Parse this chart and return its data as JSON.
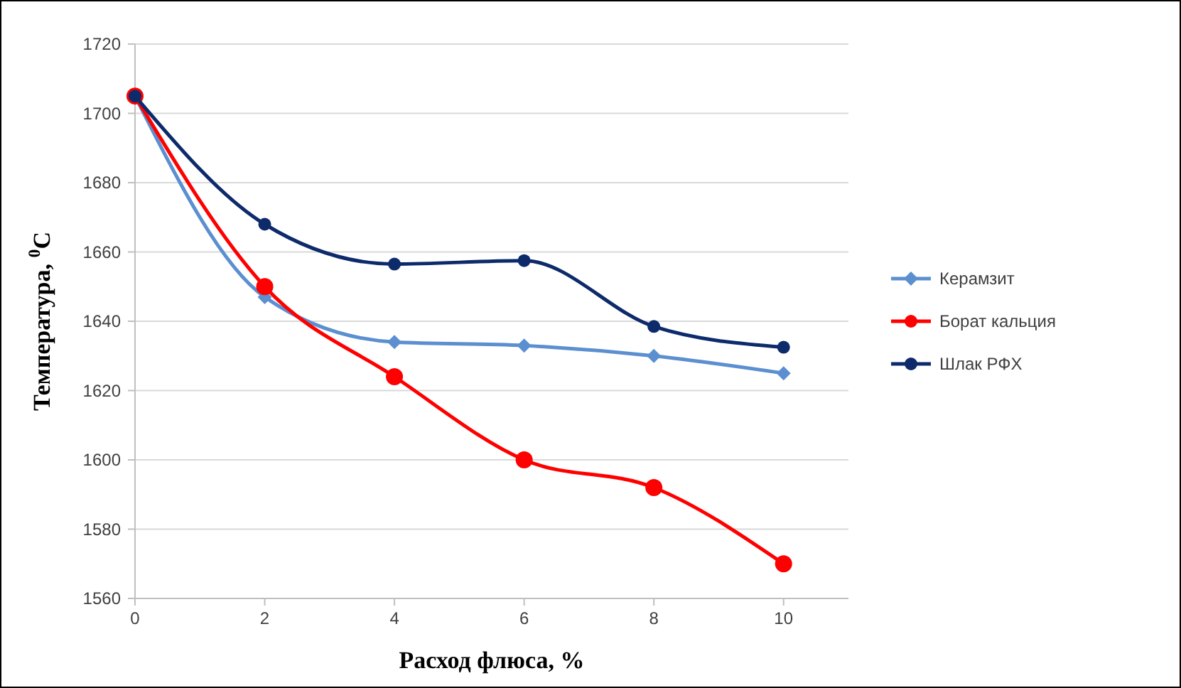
{
  "chart_data": {
    "type": "line",
    "xlabel": "Расход флюса, %",
    "ylabel": "Температура, $^{0}$С",
    "x": [
      0,
      2,
      4,
      6,
      8,
      10
    ],
    "series": [
      {
        "name": "Керамзит",
        "color": "#5b8fd0",
        "marker": "diamond",
        "values": [
          1705,
          1647,
          1634,
          1633,
          1630,
          1625
        ]
      },
      {
        "name": "Борат кальция",
        "color": "#ff0000",
        "marker": "circle",
        "values": [
          1705,
          1650,
          1624,
          1600,
          1592,
          1570
        ]
      },
      {
        "name": "Шлак РФХ",
        "color": "#0d2a6b",
        "marker": "circle",
        "values": [
          1705,
          1668,
          1656.5,
          1657.5,
          1638.5,
          1632.5
        ]
      }
    ],
    "xlim": [
      0,
      11
    ],
    "xticks": [
      0,
      2,
      4,
      6,
      8,
      10
    ],
    "ylim": [
      1560,
      1720
    ],
    "yticks": [
      1560,
      1580,
      1600,
      1620,
      1640,
      1660,
      1680,
      1700,
      1720
    ],
    "grid": "y",
    "legend": "right"
  }
}
